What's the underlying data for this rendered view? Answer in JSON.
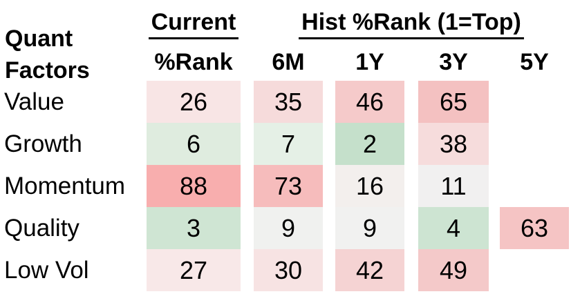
{
  "chart_data": {
    "type": "heatmap",
    "corner_title": [
      "Quant",
      "Factors"
    ],
    "group_headers": [
      {
        "label": "Current",
        "columns": [
          "%Rank"
        ]
      },
      {
        "label": "Hist %Rank (1=Top)",
        "columns": [
          "6M",
          "1Y",
          "3Y",
          "5Y"
        ]
      }
    ],
    "columns": [
      "%Rank",
      "6M",
      "1Y",
      "3Y",
      "5Y"
    ],
    "rows": [
      "Value",
      "Growth",
      "Momentum",
      "Quality",
      "Low Vol"
    ],
    "values": [
      [
        26,
        35,
        46,
        65,
        null
      ],
      [
        6,
        7,
        2,
        38,
        null
      ],
      [
        88,
        73,
        16,
        11,
        null
      ],
      [
        3,
        9,
        9,
        4,
        63
      ],
      [
        27,
        30,
        42,
        49,
        null
      ]
    ],
    "cell_colors": [
      [
        "#f8e5e5",
        "#f6dbdb",
        "#f5caca",
        "#f4c1c1",
        null
      ],
      [
        "#dfecdf",
        "#e5f0e6",
        "#c5e0cb",
        "#f6dcdc",
        null
      ],
      [
        "#f8aeae",
        "#f6bcbc",
        "#f3efed",
        "#f1f0f0",
        null
      ],
      [
        "#cfe5d3",
        "#f0f1ef",
        "#f1f1f0",
        "#cde4d2",
        "#f5c4c4"
      ],
      [
        "#f8e8e8",
        "#f7e3e3",
        "#f5d3d3",
        "#f4c9c9",
        null
      ]
    ],
    "scale_note": "1=Top",
    "legend_position": "none",
    "grid": "off",
    "colors": {
      "low_green": "#c5e0cb",
      "mid_white": "#f1f0f0",
      "high_red": "#f8aeae",
      "text": "#000000",
      "background": "#ffffff"
    }
  }
}
